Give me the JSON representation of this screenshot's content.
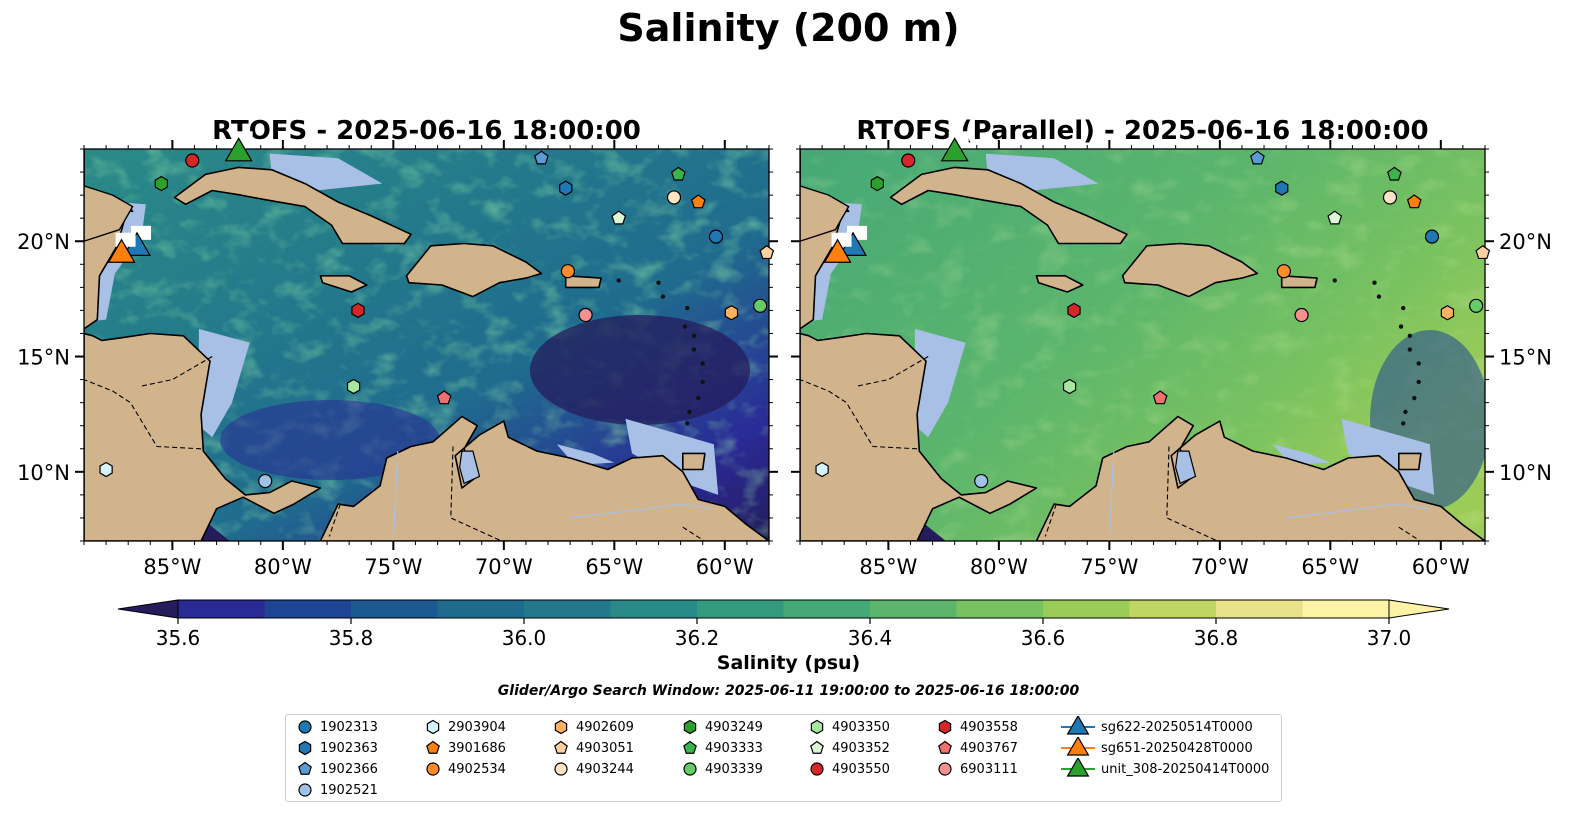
{
  "title": "Salinity (200 m)",
  "colors": {
    "ocean_fill": "#a8bfe6",
    "land": "#d2b48c",
    "colormap": [
      "#241c5c",
      "#2a2a96",
      "#1d4495",
      "#1c5891",
      "#1f6b8e",
      "#23798b",
      "#2a8a87",
      "#33997f",
      "#45a877",
      "#5bb56c",
      "#79c260",
      "#9ccc58",
      "#bfd662",
      "#e8e28a",
      "#fdf3a7"
    ]
  },
  "chart_data": [
    {
      "type": "heatmap",
      "title": "RTOFS - 2025-06-16 18:00:00",
      "tone": "eddy-rich, fresher (35.6–36.6 psu) in the central and eastern Caribbean",
      "lon_range": [
        -89,
        -58
      ],
      "lat_range": [
        7,
        24
      ],
      "xticks": [
        -85,
        -80,
        -75,
        -70,
        -65,
        -60
      ],
      "xtick_labels": [
        "85°W",
        "80°W",
        "75°W",
        "70°W",
        "65°W",
        "60°W"
      ],
      "yticks": [
        10,
        15,
        20
      ],
      "ytick_labels": [
        "10°N",
        "15°N",
        "20°N"
      ],
      "ytick_side": "left"
    },
    {
      "type": "heatmap",
      "title": "RTOFS (Parallel) - 2025-06-16 18:00:00",
      "tone": "smoother, saltier (36.3–37.0 psu) across the basin",
      "lon_range": [
        -89,
        -58
      ],
      "lat_range": [
        7,
        24
      ],
      "xticks": [
        -85,
        -80,
        -75,
        -70,
        -65,
        -60
      ],
      "xtick_labels": [
        "85°W",
        "80°W",
        "75°W",
        "70°W",
        "65°W",
        "60°W"
      ],
      "yticks": [
        10,
        15,
        20
      ],
      "ytick_labels": [
        "10°N",
        "15°N",
        "20°N"
      ],
      "ytick_side": "right"
    }
  ],
  "colorbar": {
    "label": "Salinity (psu)",
    "vmin": 35.6,
    "vmax": 37.0,
    "step": 0.1,
    "extend": "both",
    "ticks": [
      35.6,
      35.8,
      36.0,
      36.2,
      36.4,
      36.6,
      36.8,
      37.0
    ],
    "tick_labels": [
      "35.6",
      "35.8",
      "36.0",
      "36.2",
      "36.4",
      "36.6",
      "36.8",
      "37.0"
    ]
  },
  "search_window": "Glider/Argo Search Window: 2025-06-11 19:00:00 to 2025-06-16 18:00:00",
  "floats": [
    {
      "name": "1902313",
      "marker": "circle",
      "color": "#1f77b4",
      "lon": -60.4,
      "lat": 20.2
    },
    {
      "name": "1902363",
      "marker": "hexagon",
      "color": "#1f77b4",
      "lon": -67.2,
      "lat": 22.3
    },
    {
      "name": "1902366",
      "marker": "pentagon",
      "color": "#5b9bd5",
      "lon": -68.3,
      "lat": 23.6
    },
    {
      "name": "1902521",
      "marker": "circle",
      "color": "#9ec3e6",
      "lon": -80.8,
      "lat": 9.6
    },
    {
      "name": "2903904",
      "marker": "hexagon",
      "color": "#d6f1f9",
      "lon": -88.0,
      "lat": 10.1
    },
    {
      "name": "3901686",
      "marker": "pentagon",
      "color": "#ff7f0e",
      "lon": -61.2,
      "lat": 21.7
    },
    {
      "name": "4902534",
      "marker": "circle",
      "color": "#ff8c2a",
      "lon": -67.1,
      "lat": 18.7
    },
    {
      "name": "4902609",
      "marker": "hexagon",
      "color": "#ffb060",
      "lon": -59.7,
      "lat": 16.9
    },
    {
      "name": "4903051",
      "marker": "pentagon",
      "color": "#ffd0a0",
      "lon": -58.1,
      "lat": 19.5
    },
    {
      "name": "4903244",
      "marker": "circle",
      "color": "#ffe4c4",
      "lon": -62.3,
      "lat": 21.9
    },
    {
      "name": "4903249",
      "marker": "hexagon",
      "color": "#2ca02c",
      "lon": -85.5,
      "lat": 22.5
    },
    {
      "name": "4903333",
      "marker": "pentagon",
      "color": "#3cb44b",
      "lon": -62.1,
      "lat": 22.9
    },
    {
      "name": "4903339",
      "marker": "circle",
      "color": "#66cc66",
      "lon": -58.4,
      "lat": 17.2
    },
    {
      "name": "4903350",
      "marker": "hexagon",
      "color": "#a8e6a0",
      "lon": -76.8,
      "lat": 13.7
    },
    {
      "name": "4903352",
      "marker": "pentagon",
      "color": "#dcf6d6",
      "lon": -64.8,
      "lat": 21.0
    },
    {
      "name": "4903550",
      "marker": "circle",
      "color": "#d62728",
      "lon": -84.1,
      "lat": 23.5
    },
    {
      "name": "4903558",
      "marker": "hexagon",
      "color": "#d62728",
      "lon": -76.6,
      "lat": 17.0
    },
    {
      "name": "4903767",
      "marker": "pentagon",
      "color": "#f07070",
      "lon": -72.7,
      "lat": 13.2
    },
    {
      "name": "6903111",
      "marker": "circle",
      "color": "#f59090",
      "lon": -66.3,
      "lat": 16.8
    }
  ],
  "gliders": [
    {
      "name": "sg622-20250514T0000",
      "marker": "triangle",
      "color": "#1f77b4",
      "lon": -86.6,
      "lat": 19.8
    },
    {
      "name": "sg651-20250428T0000",
      "marker": "triangle",
      "color": "#ff7f0e",
      "lon": -87.3,
      "lat": 19.5
    },
    {
      "name": "unit_308-20250414T0000",
      "marker": "triangle",
      "color": "#2ca02c",
      "lon": -82.0,
      "lat": 23.9
    }
  ]
}
